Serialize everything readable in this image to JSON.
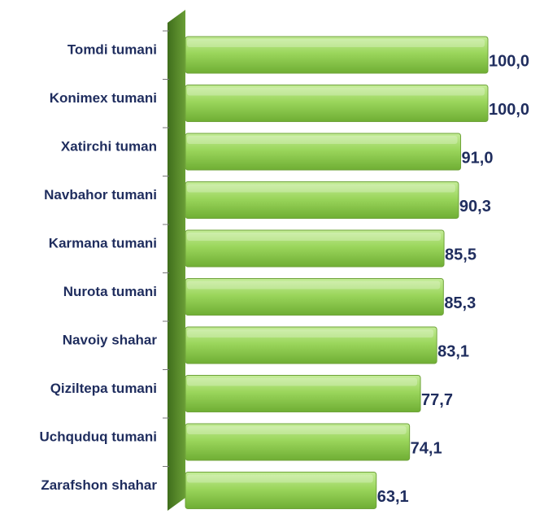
{
  "chart_data": {
    "type": "bar",
    "orientation": "horizontal",
    "categories": [
      "Tomdi tumani",
      "Konimex tumani",
      "Xatirchi tuman",
      "Navbahor tumani",
      "Karmana tumani",
      "Nurota tumani",
      "Navoiy shahar",
      "Qiziltepa tumani",
      "Uchquduq tumani",
      "Zarafshon shahar"
    ],
    "values": [
      100.0,
      100.0,
      91.0,
      90.3,
      85.5,
      85.3,
      83.1,
      77.7,
      74.1,
      63.1
    ],
    "value_labels": [
      "100,0",
      "100,0",
      "91,0",
      "90,3",
      "85,5",
      "85,3",
      "83,1",
      "77,7",
      "74,1",
      "63,1"
    ],
    "color": "#8fce4f",
    "xlim": [
      0,
      100
    ]
  }
}
